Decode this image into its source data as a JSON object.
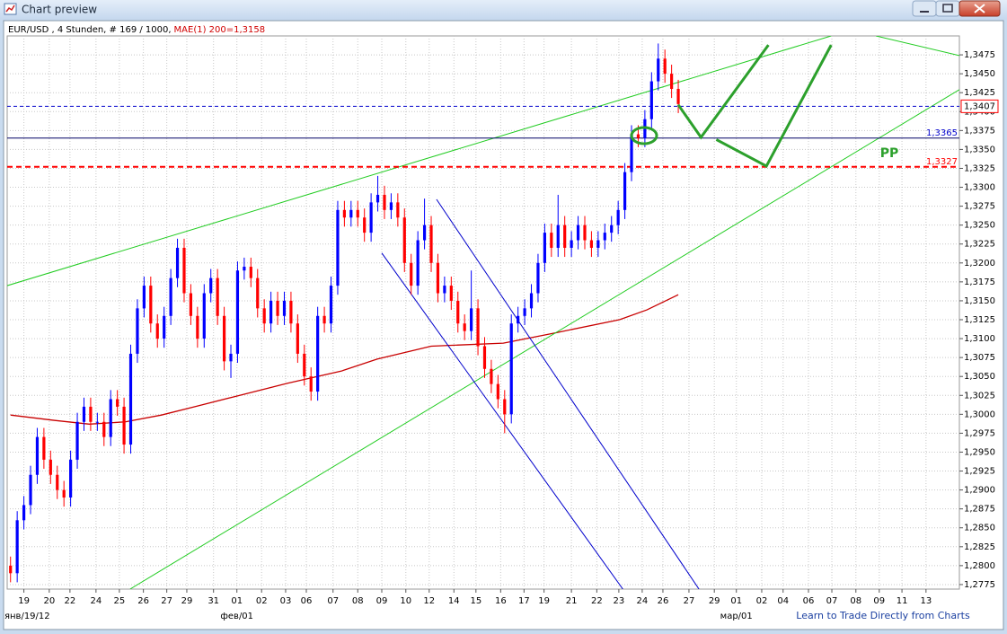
{
  "window": {
    "title": "Chart preview"
  },
  "chart_data": {
    "type": "candlestick",
    "header": "EUR/USD , 4 Stunden, # 169 / 1000,",
    "indicator_label": "MAE(1) 200=1,3158",
    "xlim": [
      -0.5,
      142.1
    ],
    "ylim": [
      1.2769,
      1.35
    ],
    "grid": true,
    "up_color": "#0000ff",
    "down_color": "#ff0000",
    "yticks": [
      {
        "value": 1.2775,
        "label": "1,2775"
      },
      {
        "value": 1.28,
        "label": "1,2800"
      },
      {
        "value": 1.2825,
        "label": "1,2825"
      },
      {
        "value": 1.285,
        "label": "1,2850"
      },
      {
        "value": 1.2875,
        "label": "1,2875"
      },
      {
        "value": 1.29,
        "label": "1,2900"
      },
      {
        "value": 1.2925,
        "label": "1,2925"
      },
      {
        "value": 1.295,
        "label": "1,2950"
      },
      {
        "value": 1.2975,
        "label": "1,2975"
      },
      {
        "value": 1.3,
        "label": "1,3000"
      },
      {
        "value": 1.3025,
        "label": "1,3025"
      },
      {
        "value": 1.305,
        "label": "1,3050"
      },
      {
        "value": 1.3075,
        "label": "1,3075"
      },
      {
        "value": 1.31,
        "label": "1,3100"
      },
      {
        "value": 1.3125,
        "label": "1,3125"
      },
      {
        "value": 1.315,
        "label": "1,3150"
      },
      {
        "value": 1.3175,
        "label": "1,3175"
      },
      {
        "value": 1.32,
        "label": "1,3200"
      },
      {
        "value": 1.3225,
        "label": "1,3225"
      },
      {
        "value": 1.325,
        "label": "1,3250"
      },
      {
        "value": 1.3275,
        "label": "1,3275"
      },
      {
        "value": 1.33,
        "label": "1,3300"
      },
      {
        "value": 1.3325,
        "label": "1,3325"
      },
      {
        "value": 1.335,
        "label": "1,3350"
      },
      {
        "value": 1.3375,
        "label": "1,3375"
      },
      {
        "value": 1.34,
        "label": "1,3400"
      },
      {
        "value": 1.3425,
        "label": "1,3425"
      },
      {
        "value": 1.345,
        "label": "1,3450"
      },
      {
        "value": 1.3475,
        "label": "1,3475"
      }
    ],
    "xticks": [
      {
        "value": 2.0,
        "label": "19"
      },
      {
        "value": 5.8,
        "label": "20"
      },
      {
        "value": 8.9,
        "label": "22"
      },
      {
        "value": 12.8,
        "label": "24"
      },
      {
        "value": 16.3,
        "label": "25"
      },
      {
        "value": 19.9,
        "label": "26"
      },
      {
        "value": 23.4,
        "label": "27"
      },
      {
        "value": 26.4,
        "label": "29"
      },
      {
        "value": 30.4,
        "label": "31"
      },
      {
        "value": 33.9,
        "label": "01"
      },
      {
        "value": 37.6,
        "label": "02"
      },
      {
        "value": 41.2,
        "label": "03"
      },
      {
        "value": 44.3,
        "label": "06"
      },
      {
        "value": 48.3,
        "label": "07"
      },
      {
        "value": 52.0,
        "label": "08"
      },
      {
        "value": 55.6,
        "label": "09"
      },
      {
        "value": 59.2,
        "label": "10"
      },
      {
        "value": 62.7,
        "label": "12"
      },
      {
        "value": 66.4,
        "label": "14"
      },
      {
        "value": 69.7,
        "label": "15"
      },
      {
        "value": 73.4,
        "label": "16"
      },
      {
        "value": 76.9,
        "label": "17"
      },
      {
        "value": 79.9,
        "label": "19"
      },
      {
        "value": 84.0,
        "label": "21"
      },
      {
        "value": 87.8,
        "label": "22"
      },
      {
        "value": 91.1,
        "label": "23"
      },
      {
        "value": 94.6,
        "label": "24"
      },
      {
        "value": 97.7,
        "label": "26"
      },
      {
        "value": 101.6,
        "label": "27"
      },
      {
        "value": 105.4,
        "label": "29"
      },
      {
        "value": 108.7,
        "label": "01"
      },
      {
        "value": 112.5,
        "label": "02"
      },
      {
        "value": 115.7,
        "label": "04"
      },
      {
        "value": 119.5,
        "label": "06"
      },
      {
        "value": 123.0,
        "label": "07"
      },
      {
        "value": 126.6,
        "label": "08"
      },
      {
        "value": 130.1,
        "label": "09"
      },
      {
        "value": 133.5,
        "label": "11"
      },
      {
        "value": 137.1,
        "label": "13"
      }
    ],
    "xticks2": [
      {
        "value": -0.5,
        "label": "янв/19/12"
      },
      {
        "value": 33.9,
        "label": "фев/01"
      },
      {
        "value": 108.7,
        "label": "мар/01"
      }
    ],
    "ohlc": [
      [
        1.28,
        1.2812,
        1.2778,
        1.279
      ],
      [
        1.279,
        1.2872,
        1.2778,
        1.286
      ],
      [
        1.286,
        1.2892,
        1.2848,
        1.288
      ],
      [
        1.288,
        1.2932,
        1.2868,
        1.292
      ],
      [
        1.292,
        1.2982,
        1.2908,
        1.297
      ],
      [
        1.297,
        1.2982,
        1.2928,
        1.294
      ],
      [
        1.294,
        1.2952,
        1.2908,
        1.292
      ],
      [
        1.292,
        1.2932,
        1.2888,
        1.29
      ],
      [
        1.29,
        1.2912,
        1.2878,
        1.289
      ],
      [
        1.289,
        1.2952,
        1.2878,
        1.294
      ],
      [
        1.294,
        1.3002,
        1.2928,
        1.299
      ],
      [
        1.299,
        1.3022,
        1.2978,
        1.301
      ],
      [
        1.301,
        1.3022,
        1.2978,
        1.299
      ],
      [
        1.299,
        1.3002,
        1.2978,
        1.299
      ],
      [
        1.299,
        1.3002,
        1.2958,
        1.297
      ],
      [
        1.297,
        1.3032,
        1.2958,
        1.302
      ],
      [
        1.302,
        1.3032,
        1.2998,
        1.301
      ],
      [
        1.301,
        1.3022,
        1.2948,
        1.296
      ],
      [
        1.296,
        1.3092,
        1.2948,
        1.308
      ],
      [
        1.308,
        1.3152,
        1.3068,
        1.314
      ],
      [
        1.314,
        1.3182,
        1.3128,
        1.317
      ],
      [
        1.317,
        1.3182,
        1.3108,
        1.312
      ],
      [
        1.312,
        1.3132,
        1.3088,
        1.31
      ],
      [
        1.31,
        1.3142,
        1.3088,
        1.313
      ],
      [
        1.313,
        1.3192,
        1.3118,
        1.318
      ],
      [
        1.318,
        1.3232,
        1.3168,
        1.322
      ],
      [
        1.322,
        1.3232,
        1.3148,
        1.316
      ],
      [
        1.316,
        1.3172,
        1.3118,
        1.313
      ],
      [
        1.313,
        1.3142,
        1.3088,
        1.31
      ],
      [
        1.31,
        1.3172,
        1.3088,
        1.316
      ],
      [
        1.316,
        1.3192,
        1.3148,
        1.318
      ],
      [
        1.318,
        1.3192,
        1.3118,
        1.313
      ],
      [
        1.313,
        1.3142,
        1.3058,
        1.307
      ],
      [
        1.307,
        1.3092,
        1.3048,
        1.308
      ],
      [
        1.308,
        1.3202,
        1.3068,
        1.319
      ],
      [
        1.319,
        1.3207,
        1.3178,
        1.3195
      ],
      [
        1.3195,
        1.3207,
        1.3168,
        1.318
      ],
      [
        1.318,
        1.3192,
        1.3128,
        1.314
      ],
      [
        1.314,
        1.3152,
        1.3108,
        1.312
      ],
      [
        1.312,
        1.3162,
        1.3108,
        1.315
      ],
      [
        1.315,
        1.3162,
        1.3118,
        1.313
      ],
      [
        1.313,
        1.3162,
        1.3118,
        1.315
      ],
      [
        1.315,
        1.3162,
        1.3108,
        1.312
      ],
      [
        1.312,
        1.3132,
        1.3068,
        1.308
      ],
      [
        1.308,
        1.3092,
        1.3038,
        1.305
      ],
      [
        1.305,
        1.3062,
        1.3018,
        1.303
      ],
      [
        1.303,
        1.3142,
        1.3018,
        1.313
      ],
      [
        1.313,
        1.3142,
        1.3108,
        1.312
      ],
      [
        1.312,
        1.3182,
        1.3108,
        1.317
      ],
      [
        1.317,
        1.3282,
        1.3158,
        1.327
      ],
      [
        1.327,
        1.3282,
        1.3248,
        1.326
      ],
      [
        1.326,
        1.3282,
        1.3248,
        1.327
      ],
      [
        1.327,
        1.3282,
        1.3248,
        1.326
      ],
      [
        1.326,
        1.3272,
        1.3228,
        1.324
      ],
      [
        1.324,
        1.3292,
        1.3228,
        1.328
      ],
      [
        1.328,
        1.3315,
        1.3268,
        1.329
      ],
      [
        1.329,
        1.3302,
        1.3258,
        1.327
      ],
      [
        1.327,
        1.3292,
        1.3258,
        1.328
      ],
      [
        1.328,
        1.3292,
        1.3248,
        1.326
      ],
      [
        1.326,
        1.3272,
        1.3188,
        1.32
      ],
      [
        1.32,
        1.3212,
        1.3158,
        1.317
      ],
      [
        1.317,
        1.3242,
        1.3158,
        1.323
      ],
      [
        1.323,
        1.3285,
        1.3218,
        1.325
      ],
      [
        1.325,
        1.3262,
        1.3188,
        1.32
      ],
      [
        1.32,
        1.3212,
        1.3148,
        1.316
      ],
      [
        1.316,
        1.3182,
        1.3148,
        1.317
      ],
      [
        1.317,
        1.3182,
        1.3138,
        1.315
      ],
      [
        1.315,
        1.3162,
        1.3108,
        1.312
      ],
      [
        1.312,
        1.3132,
        1.3098,
        1.311
      ],
      [
        1.311,
        1.319,
        1.3098,
        1.314
      ],
      [
        1.314,
        1.3152,
        1.3078,
        1.309
      ],
      [
        1.309,
        1.3102,
        1.3048,
        1.306
      ],
      [
        1.306,
        1.3072,
        1.3028,
        1.304
      ],
      [
        1.304,
        1.3052,
        1.3008,
        1.302
      ],
      [
        1.302,
        1.3032,
        1.2975,
        1.3
      ],
      [
        1.3,
        1.3132,
        1.2988,
        1.312
      ],
      [
        1.312,
        1.3142,
        1.3108,
        1.313
      ],
      [
        1.313,
        1.3152,
        1.3118,
        1.314
      ],
      [
        1.314,
        1.3172,
        1.3128,
        1.316
      ],
      [
        1.316,
        1.3212,
        1.3148,
        1.32
      ],
      [
        1.32,
        1.3252,
        1.3188,
        1.324
      ],
      [
        1.324,
        1.3252,
        1.3208,
        1.322
      ],
      [
        1.322,
        1.329,
        1.3208,
        1.325
      ],
      [
        1.325,
        1.3262,
        1.3208,
        1.322
      ],
      [
        1.322,
        1.3242,
        1.3208,
        1.323
      ],
      [
        1.323,
        1.3262,
        1.3218,
        1.325
      ],
      [
        1.325,
        1.3262,
        1.3218,
        1.323
      ],
      [
        1.323,
        1.3242,
        1.3208,
        1.322
      ],
      [
        1.322,
        1.3242,
        1.3208,
        1.323
      ],
      [
        1.323,
        1.3252,
        1.3218,
        1.324
      ],
      [
        1.324,
        1.3262,
        1.3228,
        1.325
      ],
      [
        1.325,
        1.3282,
        1.3238,
        1.327
      ],
      [
        1.327,
        1.3332,
        1.3258,
        1.332
      ],
      [
        1.332,
        1.3382,
        1.3308,
        1.337
      ],
      [
        1.337,
        1.3382,
        1.3353,
        1.3365
      ],
      [
        1.3365,
        1.3402,
        1.3353,
        1.339
      ],
      [
        1.339,
        1.3452,
        1.3378,
        1.344
      ],
      [
        1.344,
        1.349,
        1.3428,
        1.347
      ],
      [
        1.347,
        1.3482,
        1.3438,
        1.345
      ],
      [
        1.345,
        1.3462,
        1.3418,
        1.343
      ],
      [
        1.343,
        1.3442,
        1.3398,
        1.341
      ]
    ],
    "ma": {
      "color": "#c80000",
      "x": [
        0,
        6.5,
        11.8,
        17.2,
        22.6,
        28.0,
        33.4,
        41.5,
        49.5,
        54.9,
        63.0,
        73.8,
        81.8,
        91.2,
        95.3,
        100.0
      ],
      "values": [
        1.2999,
        1.2992,
        1.2987,
        1.299,
        1.2999,
        1.3011,
        1.3023,
        1.3041,
        1.3057,
        1.3073,
        1.309,
        1.3094,
        1.3108,
        1.3125,
        1.3138,
        1.3158
      ]
    },
    "levels": [
      {
        "value": 1.3407,
        "label": "1,3407",
        "color": "#0000cc",
        "dashed": true,
        "boxed": true
      },
      {
        "value": 1.3365,
        "label": "1,3365",
        "color": "#000066",
        "dashed": false,
        "boxed": false
      },
      {
        "value": 1.3327,
        "label": "1,3327",
        "color": "#ff0000",
        "dashed": true,
        "boxed": false
      }
    ],
    "trendlines": [
      {
        "color": "#22cc22",
        "x": [
          -0.5,
          122.9
        ],
        "values": [
          1.317,
          1.35
        ]
      },
      {
        "color": "#22cc22",
        "x": [
          17.9,
          142.1
        ],
        "values": [
          1.2769,
          1.3429
        ]
      },
      {
        "color": "#22cc22",
        "x": [
          129.6,
          142.1
        ],
        "values": [
          1.35,
          1.3474
        ]
      },
      {
        "color": "#0000cc",
        "x": [
          55.6,
          91.7
        ],
        "values": [
          1.3213,
          1.2769
        ]
      },
      {
        "color": "#0000cc",
        "x": [
          63.8,
          103.1
        ],
        "values": [
          1.3284,
          1.2769
        ]
      }
    ],
    "forecast_color": "#2ca02c",
    "forecast": [
      {
        "x": [
          100.0,
          103.4,
          113.5
        ],
        "values": [
          1.3409,
          1.3366,
          1.3488
        ]
      },
      {
        "x": [
          105.7,
          113.2,
          122.9
        ],
        "values": [
          1.3363,
          1.3328,
          1.3488
        ]
      }
    ],
    "annotation": "PP"
  },
  "link": "Learn to Trade Directly from Charts"
}
